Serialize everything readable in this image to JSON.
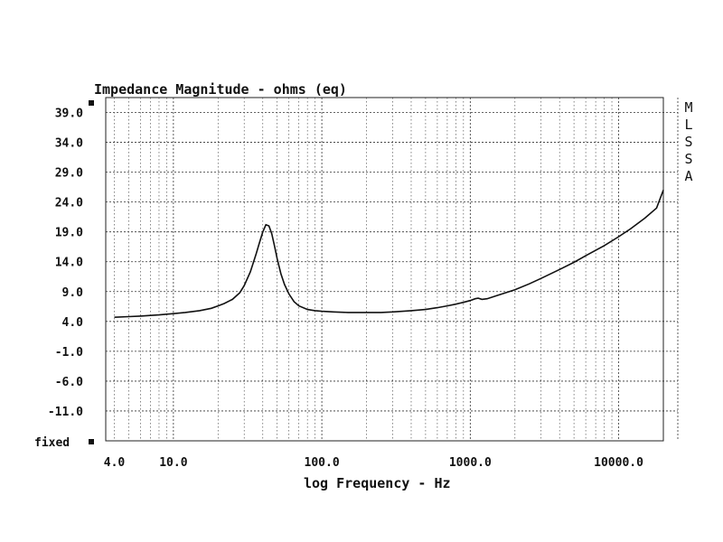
{
  "chart_data": {
    "type": "line",
    "title": "Impedance Magnitude - ohms (eq)",
    "xlabel": "log Frequency - Hz",
    "ylabel": "",
    "xscale": "log",
    "xlim": [
      3.5,
      20000
    ],
    "ylim": [
      -16.0,
      41.5
    ],
    "grid": true,
    "y_ticks": [
      39.0,
      34.0,
      29.0,
      24.0,
      19.0,
      14.0,
      9.0,
      4.0,
      -1.0,
      -6.0,
      -11.0
    ],
    "y_tick_labels": [
      "39.0",
      "34.0",
      "29.0",
      "24.0",
      "19.0",
      "14.0",
      "9.0",
      "4.0",
      "-1.0",
      "-6.0",
      "-11.0"
    ],
    "y_bottom_label": "fixed",
    "x_ticks": [
      4,
      10,
      100,
      1000,
      10000
    ],
    "x_tick_labels": [
      "4.0",
      "10.0",
      "100.0",
      "1000.0",
      "10000.0"
    ],
    "side_label": [
      "M",
      "L",
      "S",
      "S",
      "A"
    ],
    "series": [
      {
        "x": [
          4,
          5,
          6,
          7,
          8,
          10,
          12,
          15,
          18,
          20,
          22,
          25,
          28,
          30,
          33,
          36,
          38,
          40,
          42,
          44,
          46,
          48,
          50,
          53,
          56,
          60,
          65,
          70,
          80,
          90,
          100,
          120,
          150,
          200,
          250,
          300,
          400,
          500,
          600,
          700,
          800,
          900,
          1000,
          1080,
          1130,
          1200,
          1300,
          1500,
          2000,
          2500,
          3000,
          4000,
          5000,
          6000,
          8000,
          10000,
          12000,
          15000,
          18000,
          20000
        ],
        "values": [
          4.7,
          4.8,
          4.9,
          5.0,
          5.1,
          5.3,
          5.5,
          5.8,
          6.2,
          6.6,
          7.0,
          7.7,
          8.8,
          10.0,
          12.3,
          15.2,
          17.2,
          19.0,
          20.2,
          20.0,
          18.7,
          16.6,
          14.5,
          12.0,
          10.2,
          8.6,
          7.3,
          6.6,
          6.0,
          5.8,
          5.7,
          5.6,
          5.5,
          5.5,
          5.5,
          5.6,
          5.8,
          6.0,
          6.3,
          6.6,
          6.9,
          7.2,
          7.5,
          7.8,
          7.9,
          7.7,
          7.8,
          8.3,
          9.3,
          10.3,
          11.2,
          12.7,
          13.9,
          15.0,
          16.7,
          18.2,
          19.5,
          21.3,
          23.0,
          26.0
        ]
      }
    ]
  }
}
